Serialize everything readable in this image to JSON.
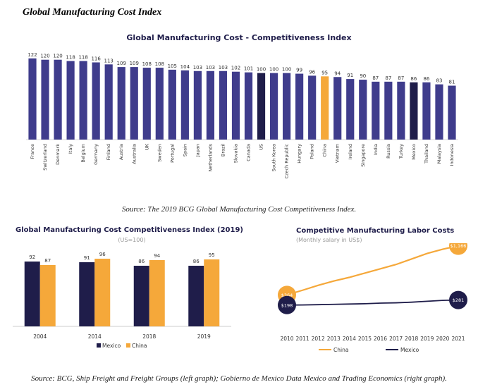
{
  "doc_title": "Global Manufacturing Cost Index",
  "caption_top": "Source: The 2019 BCG Global Manufacturing Cost Competitiveness Index.",
  "caption_bottom": "Source: BCG, Ship Freight and Freight Groups (left graph); Gobierno de Mexico Data Mexico and Trading Economics (right graph).",
  "colors": {
    "navy": "#3f3c8c",
    "dark_navy": "#1f1d4a",
    "orange": "#f5a83a",
    "grid": "#e6e6e6"
  },
  "chart_data": [
    {
      "type": "bar",
      "title": "Global Manufacturing Cost - Competitiveness Index",
      "categories": [
        "France",
        "Switzerland",
        "Denmark",
        "Italy",
        "Belgium",
        "Germany",
        "Finland",
        "Austria",
        "Australia",
        "UK",
        "Sweden",
        "Portugal",
        "Spain",
        "Japan",
        "Netherlands",
        "Brazil",
        "Slovakia",
        "Canada",
        "US",
        "South Korea",
        "Czech Republic",
        "Hungary",
        "Poland",
        "China",
        "Vietnam",
        "Ireland",
        "Singapore",
        "India",
        "Russia",
        "Turkey",
        "Mexico",
        "Thailand",
        "Malaysia",
        "Indonesia"
      ],
      "values": [
        122,
        120,
        120,
        118,
        118,
        116,
        113,
        109,
        109,
        108,
        108,
        105,
        104,
        103,
        103,
        103,
        102,
        101,
        100,
        100,
        100,
        99,
        96,
        95,
        94,
        91,
        90,
        87,
        87,
        87,
        86,
        86,
        83,
        81
      ],
      "highlights": {
        "US": "dark_navy",
        "China": "orange",
        "Mexico": "dark_navy"
      },
      "ylim": [
        0,
        125
      ]
    },
    {
      "type": "bar",
      "title": "Global Manufacturing Cost Competitiveness Index (2019)",
      "subtitle": "(US=100)",
      "categories": [
        "2004",
        "2014",
        "2018",
        "2019"
      ],
      "series": [
        {
          "name": "Mexico",
          "values": [
            92,
            91,
            86,
            86
          ],
          "color": "dark_navy"
        },
        {
          "name": "China",
          "values": [
            87,
            96,
            94,
            95
          ],
          "color": "orange"
        }
      ],
      "ylim": [
        0,
        100
      ],
      "legend": "bottom"
    },
    {
      "type": "line",
      "title": "Competitive Manufacturing Labor Costs",
      "subtitle": "(Monthly salary in US$)",
      "x": [
        2010,
        2011,
        2012,
        2013,
        2014,
        2015,
        2016,
        2017,
        2018,
        2019,
        2020,
        2021
      ],
      "series": [
        {
          "name": "China",
          "values": [
            364,
            440,
            520,
            590,
            650,
            720,
            790,
            860,
            950,
            1040,
            1110,
            1166
          ],
          "color": "orange",
          "end_labels": [
            "$364",
            "$1,166"
          ]
        },
        {
          "name": "Mexico",
          "values": [
            198,
            200,
            205,
            210,
            215,
            220,
            230,
            235,
            245,
            260,
            275,
            281
          ],
          "color": "dark_navy",
          "end_labels": [
            "$198",
            "$281"
          ]
        }
      ],
      "ylim": [
        0,
        1300
      ],
      "legend": "bottom"
    }
  ]
}
